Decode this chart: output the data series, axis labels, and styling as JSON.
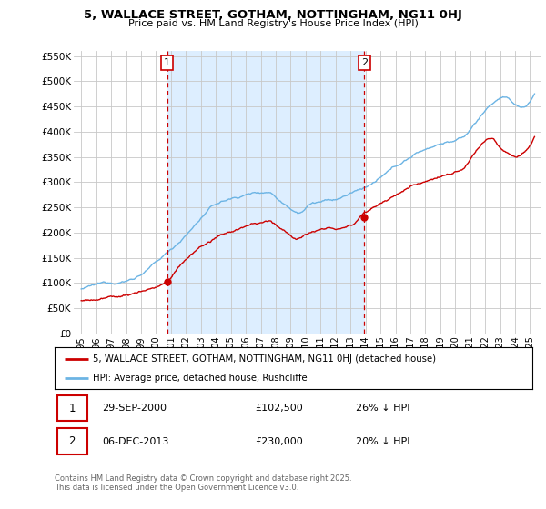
{
  "title": "5, WALLACE STREET, GOTHAM, NOTTINGHAM, NG11 0HJ",
  "subtitle": "Price paid vs. HM Land Registry's House Price Index (HPI)",
  "ylim": [
    0,
    560000
  ],
  "yticks": [
    0,
    50000,
    100000,
    150000,
    200000,
    250000,
    300000,
    350000,
    400000,
    450000,
    500000,
    550000
  ],
  "ytick_labels": [
    "£0",
    "£50K",
    "£100K",
    "£150K",
    "£200K",
    "£250K",
    "£300K",
    "£350K",
    "£400K",
    "£450K",
    "£500K",
    "£550K"
  ],
  "xlim_start": 1994.5,
  "xlim_end": 2025.7,
  "hpi_color": "#6cb4e4",
  "price_color": "#cc0000",
  "shade_color": "#ddeeff",
  "grid_color": "#c8c8c8",
  "bg_color": "#ffffff",
  "t1_year": 2000.75,
  "t1_price": 102500,
  "t2_year": 2013.92,
  "t2_price": 230000,
  "legend_line1": "5, WALLACE STREET, GOTHAM, NOTTINGHAM, NG11 0HJ (detached house)",
  "legend_line2": "HPI: Average price, detached house, Rushcliffe",
  "footer": "Contains HM Land Registry data © Crown copyright and database right 2025.\nThis data is licensed under the Open Government Licence v3.0.",
  "table_row1": [
    "1",
    "29-SEP-2000",
    "£102,500",
    "26% ↓ HPI"
  ],
  "table_row2": [
    "2",
    "06-DEC-2013",
    "£230,000",
    "20% ↓ HPI"
  ]
}
